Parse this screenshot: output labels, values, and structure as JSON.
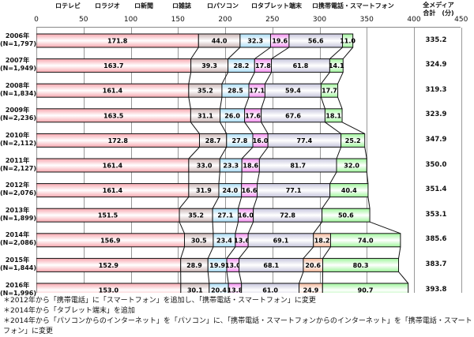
{
  "chart_data": {
    "type": "bar",
    "orientation": "horizontal-stacked",
    "title": "",
    "xlabel": "(分)",
    "xlim": [
      0,
      450
    ],
    "xticks": [
      0,
      50,
      100,
      150,
      200,
      250,
      300,
      350,
      400,
      450
    ],
    "legend_position": "top",
    "categories": [
      "2006年",
      "2007年",
      "2008年",
      "2009年",
      "2010年",
      "2011年",
      "2012年",
      "2013年",
      "2014年",
      "2015年",
      "2016年"
    ],
    "sample_sizes": [
      "(N=1,797)",
      "(N=1,949)",
      "(N=1,834)",
      "(N=2,236)",
      "(N=2,112)",
      "(N=2,127)",
      "(N=2,076)",
      "(N=1,899)",
      "(N=2,086)",
      "(N=1,844)",
      "(N=1,996)"
    ],
    "series": [
      {
        "name": "テレビ",
        "color": "#f7a6ae",
        "values": [
          171.8,
          163.7,
          161.4,
          163.5,
          172.8,
          161.4,
          161.4,
          151.5,
          156.9,
          152.9,
          153.0
        ]
      },
      {
        "name": "ラジオ",
        "color": "#c9b3b3",
        "values": [
          44.0,
          39.3,
          35.2,
          31.1,
          28.7,
          33.0,
          31.9,
          35.2,
          30.5,
          28.9,
          30.1
        ]
      },
      {
        "name": "新聞",
        "color": "#a9dcf5",
        "values": [
          32.3,
          28.2,
          28.5,
          26.0,
          27.8,
          23.3,
          24.0,
          27.1,
          23.4,
          19.9,
          20.4
        ]
      },
      {
        "name": "雑誌",
        "color": "#f38ef0",
        "values": [
          19.6,
          17.8,
          17.1,
          17.6,
          16.0,
          18.6,
          16.6,
          16.0,
          13.6,
          13.0,
          13.8
        ]
      },
      {
        "name": "パソコン",
        "color": "#c6c5dc",
        "values": [
          56.6,
          61.8,
          59.4,
          67.6,
          77.4,
          81.7,
          77.1,
          72.8,
          69.1,
          68.1,
          61.0
        ]
      },
      {
        "name": "タブレット端末",
        "color": "#f3b89a",
        "values": [
          null,
          null,
          null,
          null,
          null,
          null,
          null,
          null,
          18.2,
          20.6,
          24.9
        ]
      },
      {
        "name": "携帯電話・スマートフォン",
        "color": "#9ef59a",
        "values": [
          11.0,
          14.1,
          17.7,
          18.1,
          25.2,
          32.0,
          40.4,
          50.6,
          74.0,
          80.3,
          90.7
        ]
      }
    ],
    "totals_label": "全メディア合計",
    "totals": [
      335.2,
      324.9,
      319.3,
      323.9,
      347.9,
      350.0,
      351.4,
      353.1,
      385.6,
      383.7,
      393.8
    ],
    "footnotes": [
      "＊2012年から「携帯電話」に「スマートフォン」を追加し、「携帯電話・スマートフォン」に変更",
      "＊2014年から「タブレット端末」を追加",
      "＊2014年から「パソコンからのインターネット」を「パソコン」に、「携帯電話・スマートフォンからのインターネット」を「携帯電話・スマートフォン」に変更"
    ]
  },
  "legend": {
    "tv": "ロテレビ",
    "radio": "ロラジオ",
    "newspaper": "ロ新聞",
    "magazine": "ロ雑誌",
    "pc": "ロパソコン",
    "tablet": "ロタブレット端末",
    "mobile": "ロ携帯電話・スマートフォン"
  },
  "total_header": {
    "line1": "全メディア",
    "line2": "合計　(分)",
    "arrow": "↓"
  }
}
